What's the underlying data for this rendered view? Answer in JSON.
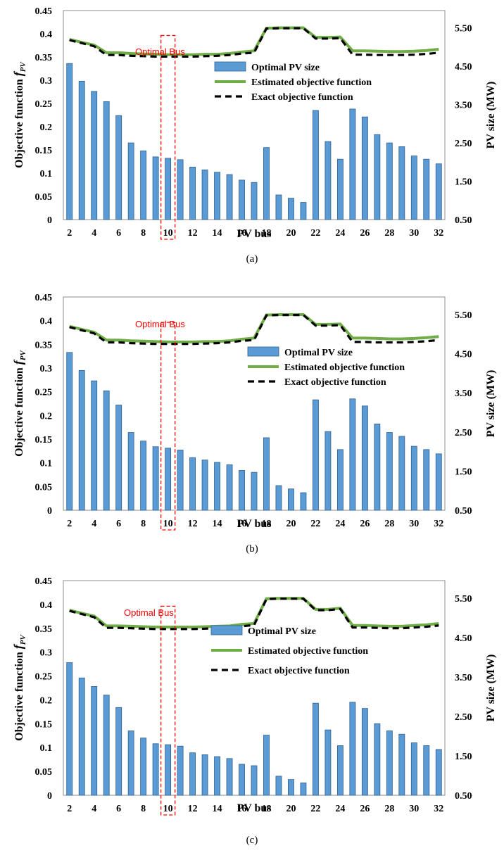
{
  "chart_data": [
    {
      "type": "bar",
      "panel_label": "(a)",
      "annotation": "Optimal Bus",
      "highlight_bus": 10,
      "xlabel": "PV bus",
      "ylabel_prefix": "Objective function ",
      "ylabel_symbol": "f",
      "ylabel_subscript": "PV",
      "y2label": "PV size (MW)",
      "ylim": [
        0,
        0.45
      ],
      "y2lim": [
        0.5,
        5.95
      ],
      "y_ticks": [
        "0",
        "0.05",
        "0.1",
        "0.15",
        "0.2",
        "0.25",
        "0.3",
        "0.35",
        "0.4",
        "0.45"
      ],
      "y2_ticks": [
        "0.50",
        "1.50",
        "2.50",
        "3.50",
        "4.50",
        "5.50"
      ],
      "x_tick_labels": [
        "2",
        "4",
        "6",
        "8",
        "10",
        "12",
        "14",
        "16",
        "18",
        "20",
        "22",
        "24",
        "26",
        "28",
        "30",
        "32"
      ],
      "legend_position": "top-right",
      "x": [
        2,
        3,
        4,
        5,
        6,
        7,
        8,
        9,
        10,
        11,
        12,
        13,
        14,
        15,
        16,
        17,
        18,
        19,
        20,
        21,
        22,
        23,
        24,
        25,
        26,
        27,
        28,
        29,
        30,
        31,
        32
      ],
      "series": [
        {
          "name": "Optimal PV size",
          "kind": "bar",
          "axis": "left",
          "color": "#5b9bd5",
          "values": [
            0.336,
            0.298,
            0.276,
            0.254,
            0.224,
            0.165,
            0.148,
            0.135,
            0.132,
            0.129,
            0.113,
            0.107,
            0.102,
            0.097,
            0.085,
            0.08,
            0.155,
            0.053,
            0.046,
            0.037,
            0.235,
            0.168,
            0.13,
            0.238,
            0.221,
            0.183,
            0.165,
            0.157,
            0.137,
            0.13,
            0.12
          ]
        },
        {
          "name": "Estimated objective function",
          "kind": "line",
          "axis": "right",
          "color": "#70ad47",
          "values": [
            5.2,
            5.12,
            5.05,
            4.85,
            4.85,
            4.83,
            4.82,
            4.81,
            4.8,
            4.8,
            4.8,
            4.81,
            4.81,
            4.83,
            4.87,
            4.9,
            5.49,
            5.5,
            5.5,
            5.5,
            5.25,
            5.25,
            5.26,
            4.9,
            4.9,
            4.89,
            4.88,
            4.88,
            4.89,
            4.91,
            4.94
          ]
        },
        {
          "name": "Exact objective function",
          "kind": "line",
          "axis": "right",
          "color": "#000000",
          "values": [
            5.18,
            5.1,
            5.02,
            4.79,
            4.79,
            4.77,
            4.76,
            4.75,
            4.75,
            4.75,
            4.75,
            4.76,
            4.77,
            4.79,
            4.83,
            4.85,
            5.48,
            5.49,
            5.49,
            5.49,
            5.22,
            5.22,
            5.23,
            4.8,
            4.8,
            4.79,
            4.79,
            4.79,
            4.8,
            4.82,
            4.85
          ]
        }
      ]
    },
    {
      "type": "bar",
      "panel_label": "(b)",
      "annotation": "Optimal Bus",
      "highlight_bus": 10,
      "xlabel": "PV bus",
      "ylabel_prefix": "Objective function ",
      "ylabel_symbol": "f",
      "ylabel_subscript": "PV",
      "y2label": "PV size (MW)",
      "ylim": [
        0,
        0.45
      ],
      "y2lim": [
        0.5,
        5.95
      ],
      "y_ticks": [
        "0",
        "0.05",
        "0.1",
        "0.15",
        "0.2",
        "0.25",
        "0.3",
        "0.35",
        "0.4",
        "0.45"
      ],
      "y2_ticks": [
        "0.50",
        "1.50",
        "2.50",
        "3.50",
        "4.50",
        "5.50"
      ],
      "x_tick_labels": [
        "2",
        "4",
        "6",
        "8",
        "10",
        "12",
        "14",
        "16",
        "18",
        "20",
        "22",
        "24",
        "26",
        "28",
        "30",
        "32"
      ],
      "legend_position": "middle-right",
      "x": [
        2,
        3,
        4,
        5,
        6,
        7,
        8,
        9,
        10,
        11,
        12,
        13,
        14,
        15,
        16,
        17,
        18,
        19,
        20,
        21,
        22,
        23,
        24,
        25,
        26,
        27,
        28,
        29,
        30,
        31,
        32
      ],
      "series": [
        {
          "name": "Optimal PV size",
          "kind": "bar",
          "axis": "left",
          "color": "#5b9bd5",
          "values": [
            0.333,
            0.295,
            0.273,
            0.252,
            0.222,
            0.164,
            0.146,
            0.134,
            0.131,
            0.127,
            0.111,
            0.106,
            0.101,
            0.096,
            0.084,
            0.08,
            0.153,
            0.052,
            0.045,
            0.037,
            0.233,
            0.166,
            0.128,
            0.235,
            0.22,
            0.182,
            0.164,
            0.156,
            0.135,
            0.128,
            0.119
          ]
        },
        {
          "name": "Estimated objective function",
          "kind": "line",
          "axis": "right",
          "color": "#70ad47",
          "values": [
            5.2,
            5.12,
            5.05,
            4.85,
            4.85,
            4.83,
            4.82,
            4.81,
            4.8,
            4.8,
            4.8,
            4.81,
            4.81,
            4.83,
            4.87,
            4.9,
            5.49,
            5.5,
            5.5,
            5.5,
            5.25,
            5.25,
            5.26,
            4.9,
            4.9,
            4.89,
            4.88,
            4.88,
            4.89,
            4.91,
            4.94
          ]
        },
        {
          "name": "Exact objective function",
          "kind": "line",
          "axis": "right",
          "color": "#000000",
          "values": [
            5.18,
            5.1,
            5.02,
            4.79,
            4.79,
            4.77,
            4.76,
            4.75,
            4.75,
            4.75,
            4.75,
            4.76,
            4.77,
            4.79,
            4.83,
            4.85,
            5.48,
            5.49,
            5.49,
            5.49,
            5.22,
            5.22,
            5.23,
            4.8,
            4.8,
            4.79,
            4.79,
            4.79,
            4.8,
            4.82,
            4.85
          ]
        }
      ]
    },
    {
      "type": "bar",
      "panel_label": "(c)",
      "annotation": "Optimal Bus",
      "highlight_bus": 10,
      "xlabel": "PV bus",
      "ylabel_prefix": "Objective function ",
      "ylabel_symbol": "f",
      "ylabel_subscript": "PV",
      "y2label": "PV size (MW)",
      "ylim": [
        0,
        0.45
      ],
      "y2lim": [
        0.5,
        5.95
      ],
      "y_ticks": [
        "0",
        "0.05",
        "0.1",
        "0.15",
        "0.2",
        "0.25",
        "0.3",
        "0.35",
        "0.4",
        "0.45"
      ],
      "y2_ticks": [
        "0.50",
        "1.50",
        "2.50",
        "3.50",
        "4.50",
        "5.50"
      ],
      "x_tick_labels": [
        "2",
        "4",
        "6",
        "8",
        "10",
        "12",
        "14",
        "16",
        "18",
        "20",
        "22",
        "24",
        "26",
        "28",
        "30",
        "32"
      ],
      "legend_position": "middle",
      "x": [
        2,
        3,
        4,
        5,
        6,
        7,
        8,
        9,
        10,
        11,
        12,
        13,
        14,
        15,
        16,
        17,
        18,
        19,
        20,
        21,
        22,
        23,
        24,
        25,
        26,
        27,
        28,
        29,
        30,
        31,
        32
      ],
      "series": [
        {
          "name": "Optimal PV size",
          "kind": "bar",
          "axis": "left",
          "color": "#5b9bd5",
          "values": [
            0.278,
            0.246,
            0.228,
            0.21,
            0.184,
            0.135,
            0.12,
            0.108,
            0.106,
            0.103,
            0.089,
            0.085,
            0.081,
            0.077,
            0.065,
            0.062,
            0.126,
            0.04,
            0.033,
            0.026,
            0.193,
            0.137,
            0.104,
            0.195,
            0.182,
            0.15,
            0.135,
            0.128,
            0.11,
            0.104,
            0.096
          ]
        },
        {
          "name": "Estimated objective function",
          "kind": "line",
          "axis": "right",
          "color": "#70ad47",
          "values": [
            5.2,
            5.12,
            5.05,
            4.8,
            4.8,
            4.79,
            4.78,
            4.77,
            4.77,
            4.77,
            4.77,
            4.78,
            4.79,
            4.8,
            4.84,
            4.86,
            5.49,
            5.5,
            5.5,
            5.5,
            5.22,
            5.22,
            5.25,
            4.81,
            4.81,
            4.8,
            4.79,
            4.79,
            4.81,
            4.83,
            4.86
          ]
        },
        {
          "name": "Exact objective function",
          "kind": "line",
          "axis": "right",
          "color": "#000000",
          "values": [
            5.18,
            5.1,
            5.02,
            4.75,
            4.75,
            4.74,
            4.73,
            4.72,
            4.72,
            4.72,
            4.72,
            4.73,
            4.74,
            4.75,
            4.79,
            4.82,
            5.48,
            5.49,
            5.49,
            5.49,
            5.2,
            5.2,
            5.23,
            4.76,
            4.76,
            4.75,
            4.74,
            4.74,
            4.76,
            4.78,
            4.81
          ]
        }
      ]
    }
  ]
}
